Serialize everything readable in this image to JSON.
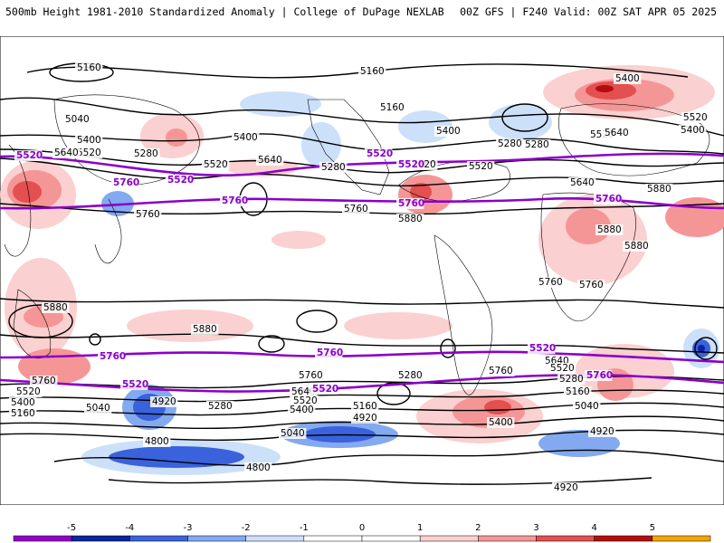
{
  "header": {
    "left": "500mb Height 1981-2010 Standardized Anomaly | College of DuPage NEXLAB",
    "right": "00Z GFS | F240 Valid: 00Z SAT APR 05 2025"
  },
  "colors": {
    "pos1": "#fbd0d0",
    "pos2": "#f59696",
    "pos3": "#e44f4f",
    "pos4": "#b30d0d",
    "pos5": "#f5a300",
    "neg1": "#cce0fa",
    "neg2": "#83a9f0",
    "neg3": "#3a62dc",
    "neg4": "#0f22a0",
    "neg5": "#9400c8",
    "contour": "#000000",
    "highlight": "#8a00c8"
  },
  "contour_labels": {
    "north": [
      "5160",
      "5160",
      "5040",
      "5400",
      "5520",
      "5640",
      "5280",
      "5400",
      "5520",
      "5640",
      "5280",
      "5160",
      "5400",
      "5520",
      "5280",
      "5520",
      "5640",
      "5400",
      "5520",
      "5400",
      "5280",
      "5520",
      "5640"
    ],
    "mid": [
      "5760",
      "5760",
      "5880",
      "5880",
      "5880",
      "5760",
      "5760",
      "5880"
    ],
    "south": [
      "5880",
      "5880",
      "5760",
      "5760",
      "5640",
      "5520",
      "5400",
      "5160",
      "5040",
      "4920",
      "4800",
      "4800",
      "5280",
      "5520",
      "5400",
      "5160",
      "5040",
      "4920",
      "5280",
      "5400",
      "5640",
      "5520",
      "5280",
      "5160",
      "5040",
      "4920",
      "4920",
      "5760"
    ]
  },
  "highlight_labels": [
    "5520",
    "5760",
    "5520",
    "5760",
    "5520",
    "5520",
    "5760",
    "5760",
    "5760",
    "5760",
    "5520",
    "5520",
    "5520",
    "5760"
  ],
  "colorbar": {
    "ticks": [
      "-5",
      "-4",
      "-3",
      "-2",
      "-1",
      "0",
      "1",
      "2",
      "3",
      "4",
      "5"
    ]
  }
}
